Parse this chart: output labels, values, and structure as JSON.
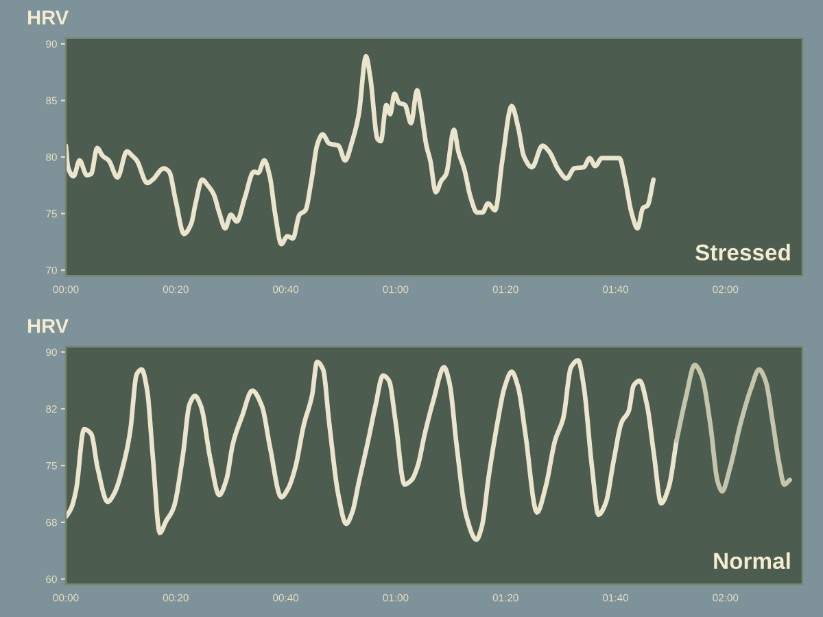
{
  "chart_data": [
    {
      "type": "line",
      "title": "Stressed",
      "ylabel": "HRV",
      "xlim": [
        0,
        134
      ],
      "ylim": [
        69.5,
        90.5
      ],
      "xticks": [
        {
          "value": 0,
          "label": "00:00"
        },
        {
          "value": 20,
          "label": "00:20"
        },
        {
          "value": 40,
          "label": "00:40"
        },
        {
          "value": 60,
          "label": "01:00"
        },
        {
          "value": 80,
          "label": "01:20"
        },
        {
          "value": 100,
          "label": "01:40"
        },
        {
          "value": 120,
          "label": "02:00"
        }
      ],
      "yticks": [
        70,
        75,
        80,
        85,
        90
      ],
      "series": [
        {
          "color": "#ebe5cd",
          "x": [
            0,
            0.4,
            1.4,
            2.5,
            3.8,
            4.6,
            5.7,
            6.7,
            7.8,
            9.4,
            11.1,
            12.1,
            12.9,
            14.8,
            15.8,
            17.8,
            18.8,
            20,
            21.5,
            22.8,
            23.6,
            24.8,
            25.8,
            26.9,
            27.9,
            29,
            30,
            31.1,
            32.5,
            34.2,
            35,
            36.1,
            37.1,
            38.1,
            39.2,
            40.3,
            41.3,
            42.5,
            43.6,
            44.6,
            45.8,
            46.7,
            47.9,
            49.6,
            50.8,
            52.1,
            53.3,
            54.6,
            55.4,
            56.7,
            57.3,
            58.3,
            59,
            59.8,
            60.6,
            61.7,
            62.8,
            63.9,
            64.6,
            65.6,
            66.3,
            67.3,
            68.3,
            69.2,
            70.6,
            71.4,
            72.5,
            73.6,
            74.8,
            75.8,
            76.8,
            78.1,
            79.4,
            81.1,
            82.3,
            83.3,
            84.8,
            86.7,
            87.9,
            89.6,
            91.1,
            92.5,
            94.2,
            95.3,
            96.3,
            97.5,
            100.7,
            101.7,
            102.9,
            104,
            105,
            105.8,
            106.9
          ],
          "values": [
            81.0,
            79.1,
            78.3,
            79.7,
            78.4,
            78.5,
            80.8,
            80.1,
            79.7,
            78.2,
            80.5,
            80.1,
            79.7,
            77.7,
            78.0,
            79.0,
            78.7,
            76.1,
            73.2,
            74.1,
            75.9,
            78.0,
            77.5,
            76.7,
            75.1,
            73.7,
            74.9,
            74.3,
            76.3,
            78.7,
            78.6,
            79.7,
            78.3,
            74.9,
            72.3,
            73.0,
            72.8,
            74.9,
            75.3,
            77.7,
            81.2,
            82.0,
            81.2,
            81.0,
            79.7,
            81.4,
            83.8,
            88.9,
            87.0,
            81.6,
            81.4,
            84.6,
            83.8,
            85.6,
            84.8,
            84.6,
            83.0,
            85.9,
            84.2,
            81.0,
            79.7,
            76.9,
            77.9,
            78.5,
            82.4,
            80.5,
            78.9,
            76.5,
            75.1,
            75.1,
            75.9,
            75.3,
            79.7,
            84.5,
            82.6,
            80.1,
            79.1,
            81.0,
            80.5,
            78.9,
            78.1,
            79.0,
            79.1,
            79.9,
            79.2,
            79.9,
            79.9,
            78.1,
            75.1,
            73.7,
            75.5,
            75.7,
            78.0
          ]
        }
      ]
    },
    {
      "type": "line",
      "title": "Normal",
      "ylabel": "HRV",
      "xlim": [
        0,
        134
      ],
      "ylim": [
        59.3,
        90.7
      ],
      "xticks": [
        {
          "value": 0,
          "label": "00:00"
        },
        {
          "value": 20,
          "label": "00:20"
        },
        {
          "value": 40,
          "label": "00:40"
        },
        {
          "value": 60,
          "label": "01:00"
        },
        {
          "value": 80,
          "label": "01:20"
        },
        {
          "value": 100,
          "label": "01:40"
        },
        {
          "value": 120,
          "label": "02:00"
        }
      ],
      "yticks": [
        60,
        {
          "value": 67.5,
          "label": "68"
        },
        75,
        {
          "value": 82.5,
          "label": "82"
        },
        90
      ],
      "series": [
        {
          "color": "#ebe5cd",
          "x": [
            0,
            1,
            1.9,
            3.3,
            4.6,
            5.8,
            7.6,
            8.8,
            10.7,
            11.7,
            12.9,
            13.8,
            14.8,
            15.8,
            17.1,
            18.2,
            19.6,
            21.3,
            22.5,
            23.5,
            24.6,
            26.3,
            27.9,
            29.2,
            30.4,
            32.1,
            33.9,
            35.7,
            37.1,
            39.2,
            40.4,
            41.7,
            43.3,
            44.8,
            45.7,
            46.8,
            47.9,
            49.6,
            51,
            52.1,
            53.3,
            55,
            56.3,
            57.7,
            58.8,
            60,
            61.6,
            62.9,
            64,
            65.3,
            66.9,
            68.8,
            69.8,
            71.1,
            72.8,
            74.7,
            75.7,
            76.9,
            78.6,
            79.8,
            81.1,
            82.3,
            83.6,
            85.7,
            87.3,
            89,
            90.5,
            91.9,
            93.2,
            94.2,
            95.7,
            96.9,
            98.2,
            99.7,
            101.1,
            102.4,
            103.3,
            104.4,
            105.7,
            107,
            108.3,
            109.7,
            111.1
          ],
          "values": [
            68.2,
            69.4,
            71.9,
            79.8,
            79.2,
            74.6,
            70.2,
            71.3,
            75.8,
            79.5,
            87.1,
            87.7,
            84.9,
            76.4,
            66.1,
            67.6,
            69.4,
            76.4,
            83.1,
            84.2,
            82.8,
            75.8,
            71.1,
            73.1,
            77.9,
            81.6,
            84.9,
            82.8,
            77.6,
            70.8,
            71.9,
            74.6,
            80.4,
            84.3,
            88.7,
            87.7,
            80.7,
            71.0,
            67.3,
            68.8,
            72.8,
            78.3,
            82.8,
            86.9,
            86.2,
            80.7,
            72.5,
            73.1,
            74.9,
            79.2,
            83.7,
            88.0,
            85.9,
            77.6,
            68.5,
            65.2,
            67.0,
            73.4,
            81.0,
            85.3,
            87.4,
            85.3,
            79.2,
            68.8,
            72.2,
            78.3,
            81.3,
            88.0,
            88.9,
            85.6,
            74.9,
            68.5,
            70.0,
            75.8,
            80.7,
            82.2,
            85.6,
            86.2,
            83.1,
            76.4,
            70.0,
            72.2,
            78.3
          ]
        },
        {
          "color": "#c4c5ab",
          "x": [
            111.1,
            112.8,
            114.4,
            115.7,
            117.2,
            118.6,
            119.4,
            120.8,
            122.8,
            124.7,
            126.1,
            127.3,
            128.6,
            129.8,
            130.7,
            131.7
          ],
          "values": [
            78.3,
            84.0,
            88.3,
            86.8,
            80.7,
            72.8,
            71.6,
            74.6,
            80.7,
            85.3,
            87.7,
            86.2,
            80.7,
            75.2,
            72.5,
            73.1
          ]
        }
      ]
    }
  ]
}
